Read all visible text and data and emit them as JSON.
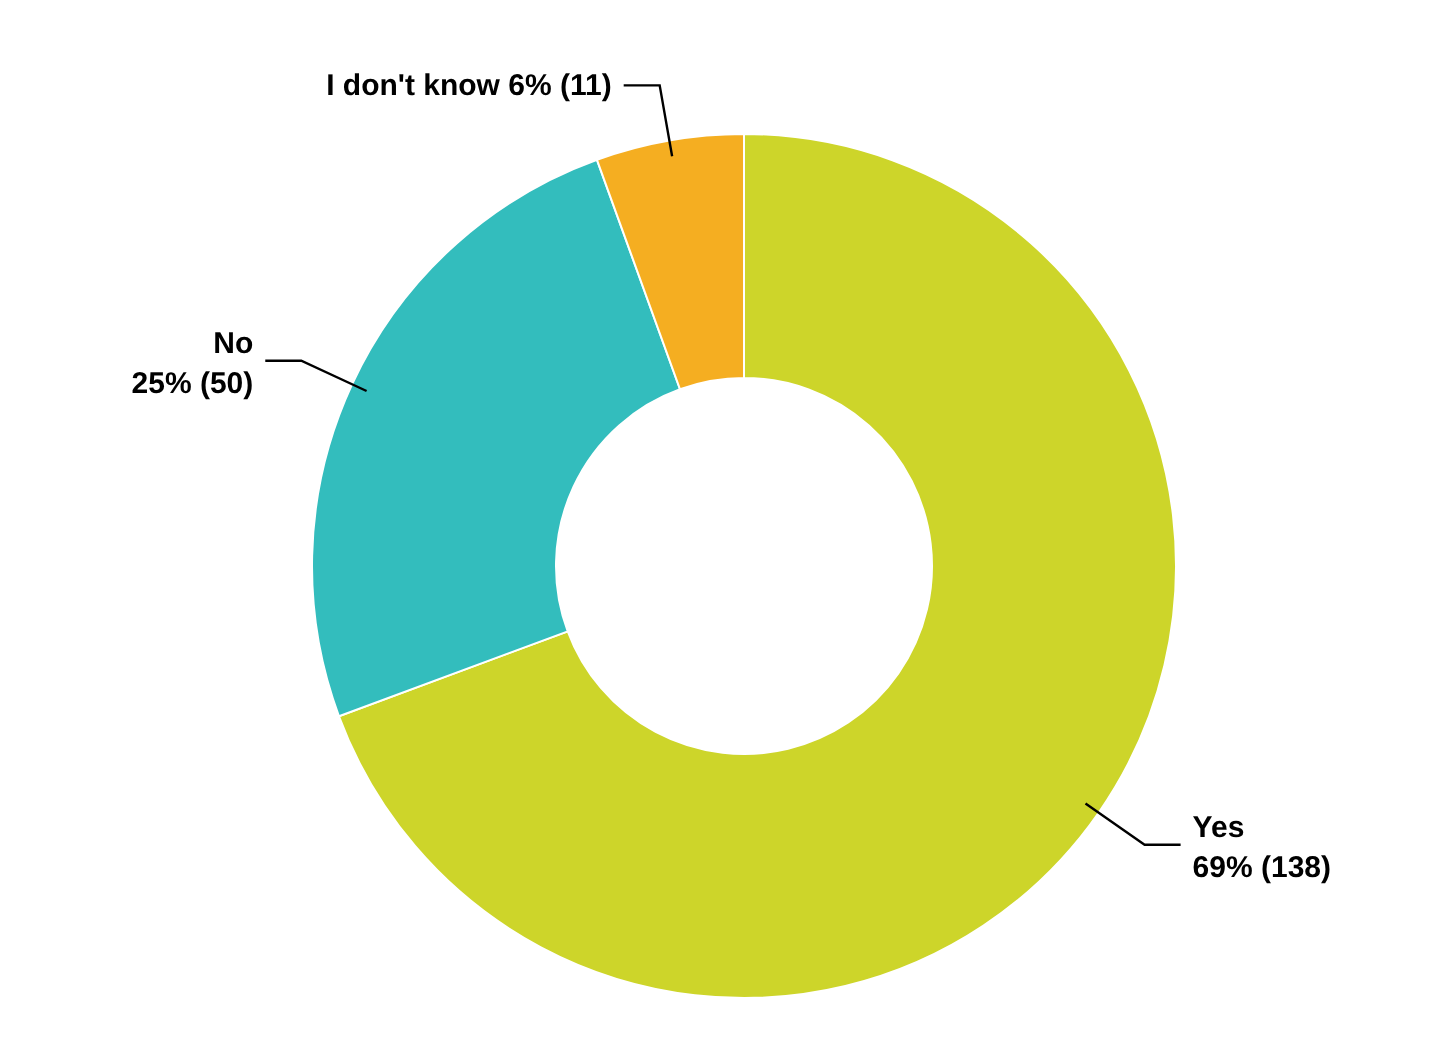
{
  "chart_data": {
    "type": "donut",
    "categories": [
      "Yes",
      "No",
      "I don't know"
    ],
    "values": [
      138,
      50,
      11
    ],
    "value_labels": [
      "69% (138)",
      "25% (50)",
      "6% (11)"
    ],
    "colors": [
      "#cdd52a",
      "#33bdbd",
      "#f5ae21"
    ]
  }
}
